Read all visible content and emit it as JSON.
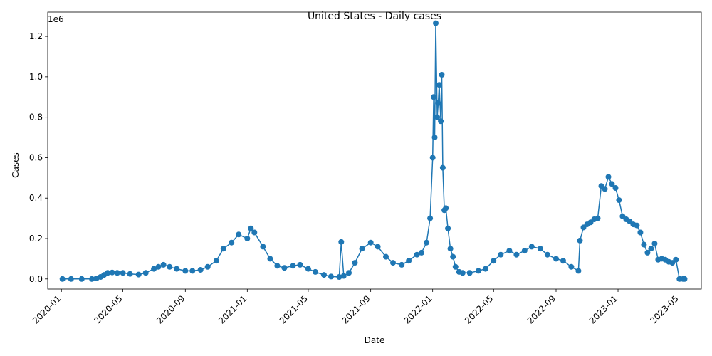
{
  "chart_data": {
    "type": "line",
    "title": "United States - Daily cases",
    "xlabel": "Date",
    "ylabel": "Cases",
    "y_offset_label": "1e6",
    "ylim": [
      -50000,
      1320000
    ],
    "xlim": [
      "2019-12-05",
      "2023-06-14"
    ],
    "yticks": [
      0,
      200000,
      400000,
      600000,
      800000,
      1000000,
      1200000
    ],
    "ytick_labels": [
      "0.0",
      "0.2",
      "0.4",
      "0.6",
      "0.8",
      "1.0",
      "1.2"
    ],
    "xticks": [
      "2020-01-01",
      "2020-05-01",
      "2020-09-01",
      "2021-01-01",
      "2021-05-01",
      "2021-09-01",
      "2022-01-01",
      "2022-05-01",
      "2022-09-01",
      "2023-01-01",
      "2023-05-01"
    ],
    "xtick_labels": [
      "2020-01",
      "2020-05",
      "2020-09",
      "2021-01",
      "2021-05",
      "2021-09",
      "2022-01",
      "2022-05",
      "2022-09",
      "2023-01",
      "2023-05"
    ],
    "grid": false,
    "marker": "circle",
    "color": "#1f77b4",
    "series": [
      {
        "x": [
          "2020-01-03",
          "2020-01-20",
          "2020-02-10",
          "2020-03-01",
          "2020-03-10",
          "2020-03-18",
          "2020-03-25",
          "2020-04-01",
          "2020-04-10",
          "2020-04-20",
          "2020-05-01",
          "2020-05-15",
          "2020-06-01",
          "2020-06-15",
          "2020-07-01",
          "2020-07-10",
          "2020-07-20",
          "2020-08-01",
          "2020-08-15",
          "2020-09-01",
          "2020-09-15",
          "2020-10-01",
          "2020-10-15",
          "2020-11-01",
          "2020-11-15",
          "2020-12-01",
          "2020-12-15",
          "2021-01-01",
          "2021-01-08",
          "2021-01-15",
          "2021-02-01",
          "2021-02-15",
          "2021-03-01",
          "2021-03-15",
          "2021-04-01",
          "2021-04-15",
          "2021-05-01",
          "2021-05-15",
          "2021-06-01",
          "2021-06-15",
          "2021-07-01",
          "2021-07-05",
          "2021-07-10",
          "2021-07-20",
          "2021-08-01",
          "2021-08-15",
          "2021-09-01",
          "2021-09-15",
          "2021-10-01",
          "2021-10-15",
          "2021-11-01",
          "2021-11-15",
          "2021-12-01",
          "2021-12-10",
          "2021-12-20",
          "2021-12-27",
          "2022-01-01",
          "2022-01-03",
          "2022-01-05",
          "2022-01-07",
          "2022-01-10",
          "2022-01-12",
          "2022-01-14",
          "2022-01-17",
          "2022-01-19",
          "2022-01-21",
          "2022-01-24",
          "2022-01-27",
          "2022-01-31",
          "2022-02-05",
          "2022-02-10",
          "2022-02-15",
          "2022-02-22",
          "2022-03-01",
          "2022-03-15",
          "2022-04-01",
          "2022-04-15",
          "2022-05-01",
          "2022-05-15",
          "2022-06-01",
          "2022-06-15",
          "2022-07-01",
          "2022-07-15",
          "2022-08-01",
          "2022-08-15",
          "2022-09-01",
          "2022-09-15",
          "2022-10-01",
          "2022-10-15",
          "2022-10-18",
          "2022-10-25",
          "2022-11-01",
          "2022-11-08",
          "2022-11-15",
          "2022-11-22",
          "2022-11-29",
          "2022-12-06",
          "2022-12-13",
          "2022-12-20",
          "2022-12-27",
          "2023-01-03",
          "2023-01-10",
          "2023-01-17",
          "2023-01-24",
          "2023-01-31",
          "2023-02-07",
          "2023-02-14",
          "2023-02-21",
          "2023-02-28",
          "2023-03-07",
          "2023-03-14",
          "2023-03-21",
          "2023-03-28",
          "2023-04-04",
          "2023-04-11",
          "2023-04-18",
          "2023-04-25",
          "2023-05-02",
          "2023-05-09",
          "2023-05-12"
        ],
        "y": [
          0,
          0,
          0,
          0,
          3000,
          10000,
          20000,
          30000,
          32000,
          30000,
          30000,
          25000,
          22000,
          30000,
          50000,
          60000,
          70000,
          60000,
          50000,
          40000,
          40000,
          45000,
          60000,
          90000,
          150000,
          180000,
          220000,
          200000,
          250000,
          230000,
          160000,
          100000,
          65000,
          55000,
          65000,
          70000,
          50000,
          35000,
          20000,
          12000,
          10000,
          183000,
          15000,
          30000,
          80000,
          150000,
          180000,
          160000,
          110000,
          80000,
          70000,
          90000,
          120000,
          130000,
          180000,
          300000,
          600000,
          900000,
          700000,
          1265000,
          800000,
          870000,
          960000,
          780000,
          1010000,
          550000,
          340000,
          350000,
          250000,
          150000,
          110000,
          60000,
          35000,
          30000,
          30000,
          40000,
          50000,
          90000,
          120000,
          140000,
          120000,
          140000,
          160000,
          150000,
          120000,
          100000,
          90000,
          60000,
          40000,
          190000,
          255000,
          270000,
          280000,
          295000,
          300000,
          460000,
          445000,
          505000,
          470000,
          450000,
          390000,
          310000,
          295000,
          285000,
          270000,
          265000,
          230000,
          170000,
          130000,
          150000,
          175000,
          95000,
          100000,
          95000,
          85000,
          80000,
          95000,
          0,
          0,
          0
        ]
      }
    ]
  }
}
